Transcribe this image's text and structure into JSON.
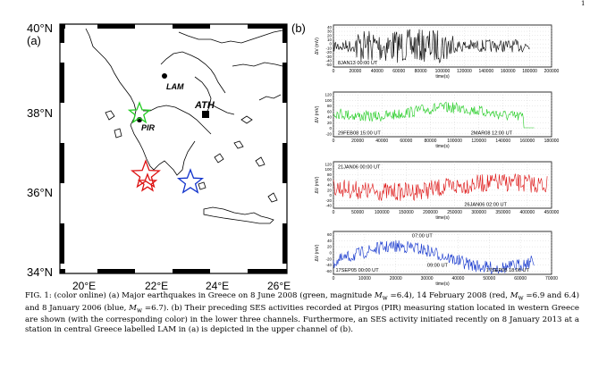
{
  "page": {
    "page_number_fragment": "1"
  },
  "panel_a": {
    "label": "(a)",
    "lat_labels": [
      "40°N",
      "38°N",
      "36°N",
      "34°N"
    ],
    "lon_labels": [
      "20°E",
      "22°E",
      "24°E",
      "26°E"
    ],
    "stations": [
      "LAM",
      "ATH",
      "PIR"
    ],
    "star_colors": {
      "green": "#22cc22",
      "red": "#dd1111",
      "blue": "#1133cc"
    }
  },
  "panel_b": {
    "label": "(b)",
    "ylabel": "ΔV (mV)",
    "xlabel": "time(s)",
    "channels": [
      {
        "name": "ch1",
        "color": "#000000",
        "ann": [
          "8JAN13 00:00 UT"
        ],
        "xticks": [
          "0",
          "20000",
          "40000",
          "60000",
          "80000",
          "100000",
          "120000",
          "140000",
          "160000",
          "180000",
          "200000"
        ],
        "yticks": [
          "40",
          "30",
          "20",
          "10",
          "0",
          "-10",
          "-20",
          "-30",
          "-40",
          "-50"
        ]
      },
      {
        "name": "ch2",
        "color": "#22cc22",
        "ann": [
          "29FEB08 15:00 UT",
          "2MAR08 12:00 UT"
        ],
        "xticks": [
          "0",
          "20000",
          "40000",
          "60000",
          "80000",
          "100000",
          "120000",
          "140000",
          "160000",
          "180000"
        ],
        "yticks": [
          "120",
          "100",
          "80",
          "60",
          "40",
          "20",
          "0",
          "-20"
        ]
      },
      {
        "name": "ch3",
        "color": "#dd1111",
        "ann": [
          "21JAN06 00:00 UT",
          "26JAN06 02:00 UT"
        ],
        "xticks": [
          "0",
          "50000",
          "100000",
          "150000",
          "200000",
          "250000",
          "300000",
          "350000",
          "400000",
          "450000"
        ],
        "yticks": [
          "120",
          "100",
          "80",
          "60",
          "40",
          "20",
          "0",
          "-20",
          "-40"
        ]
      },
      {
        "name": "ch4",
        "color": "#1133cc",
        "ann": [
          "07:00 UT",
          "09:00 UT",
          "17SEP05 00:00 UT",
          "17SEP05 18:00 UT"
        ],
        "xticks": [
          "0",
          "10000",
          "20000",
          "30000",
          "40000",
          "50000",
          "60000",
          "70000"
        ],
        "yticks": [
          "60",
          "40",
          "20",
          "0",
          "-20",
          "-40",
          "-60"
        ]
      }
    ]
  },
  "caption": {
    "p1": "FIG. 1: (color online) (a) Major earthquakes in Greece on 8 June 2008 (green, magnitude ",
    "mw1": "M",
    "sub1": "w",
    "p2": " =6.4), 14 February 2008 (red,",
    "mw2": "M",
    "sub2": "w",
    "p3": " =6.9 and 6.4) and 8 January 2006 (blue, ",
    "mw3": "M",
    "sub3": "w",
    "p4": " =6.7). (b) Their preceding SES activities recorded at Pirgos (PIR) measuring station located in western Greece are shown (with the corresponding color) in the lower three channels. Furthermore, an SES activity initiated recently on 8 January 2013 at a station in central Greece labelled LAM in (a) is depicted in the upper channel of (b)."
  }
}
